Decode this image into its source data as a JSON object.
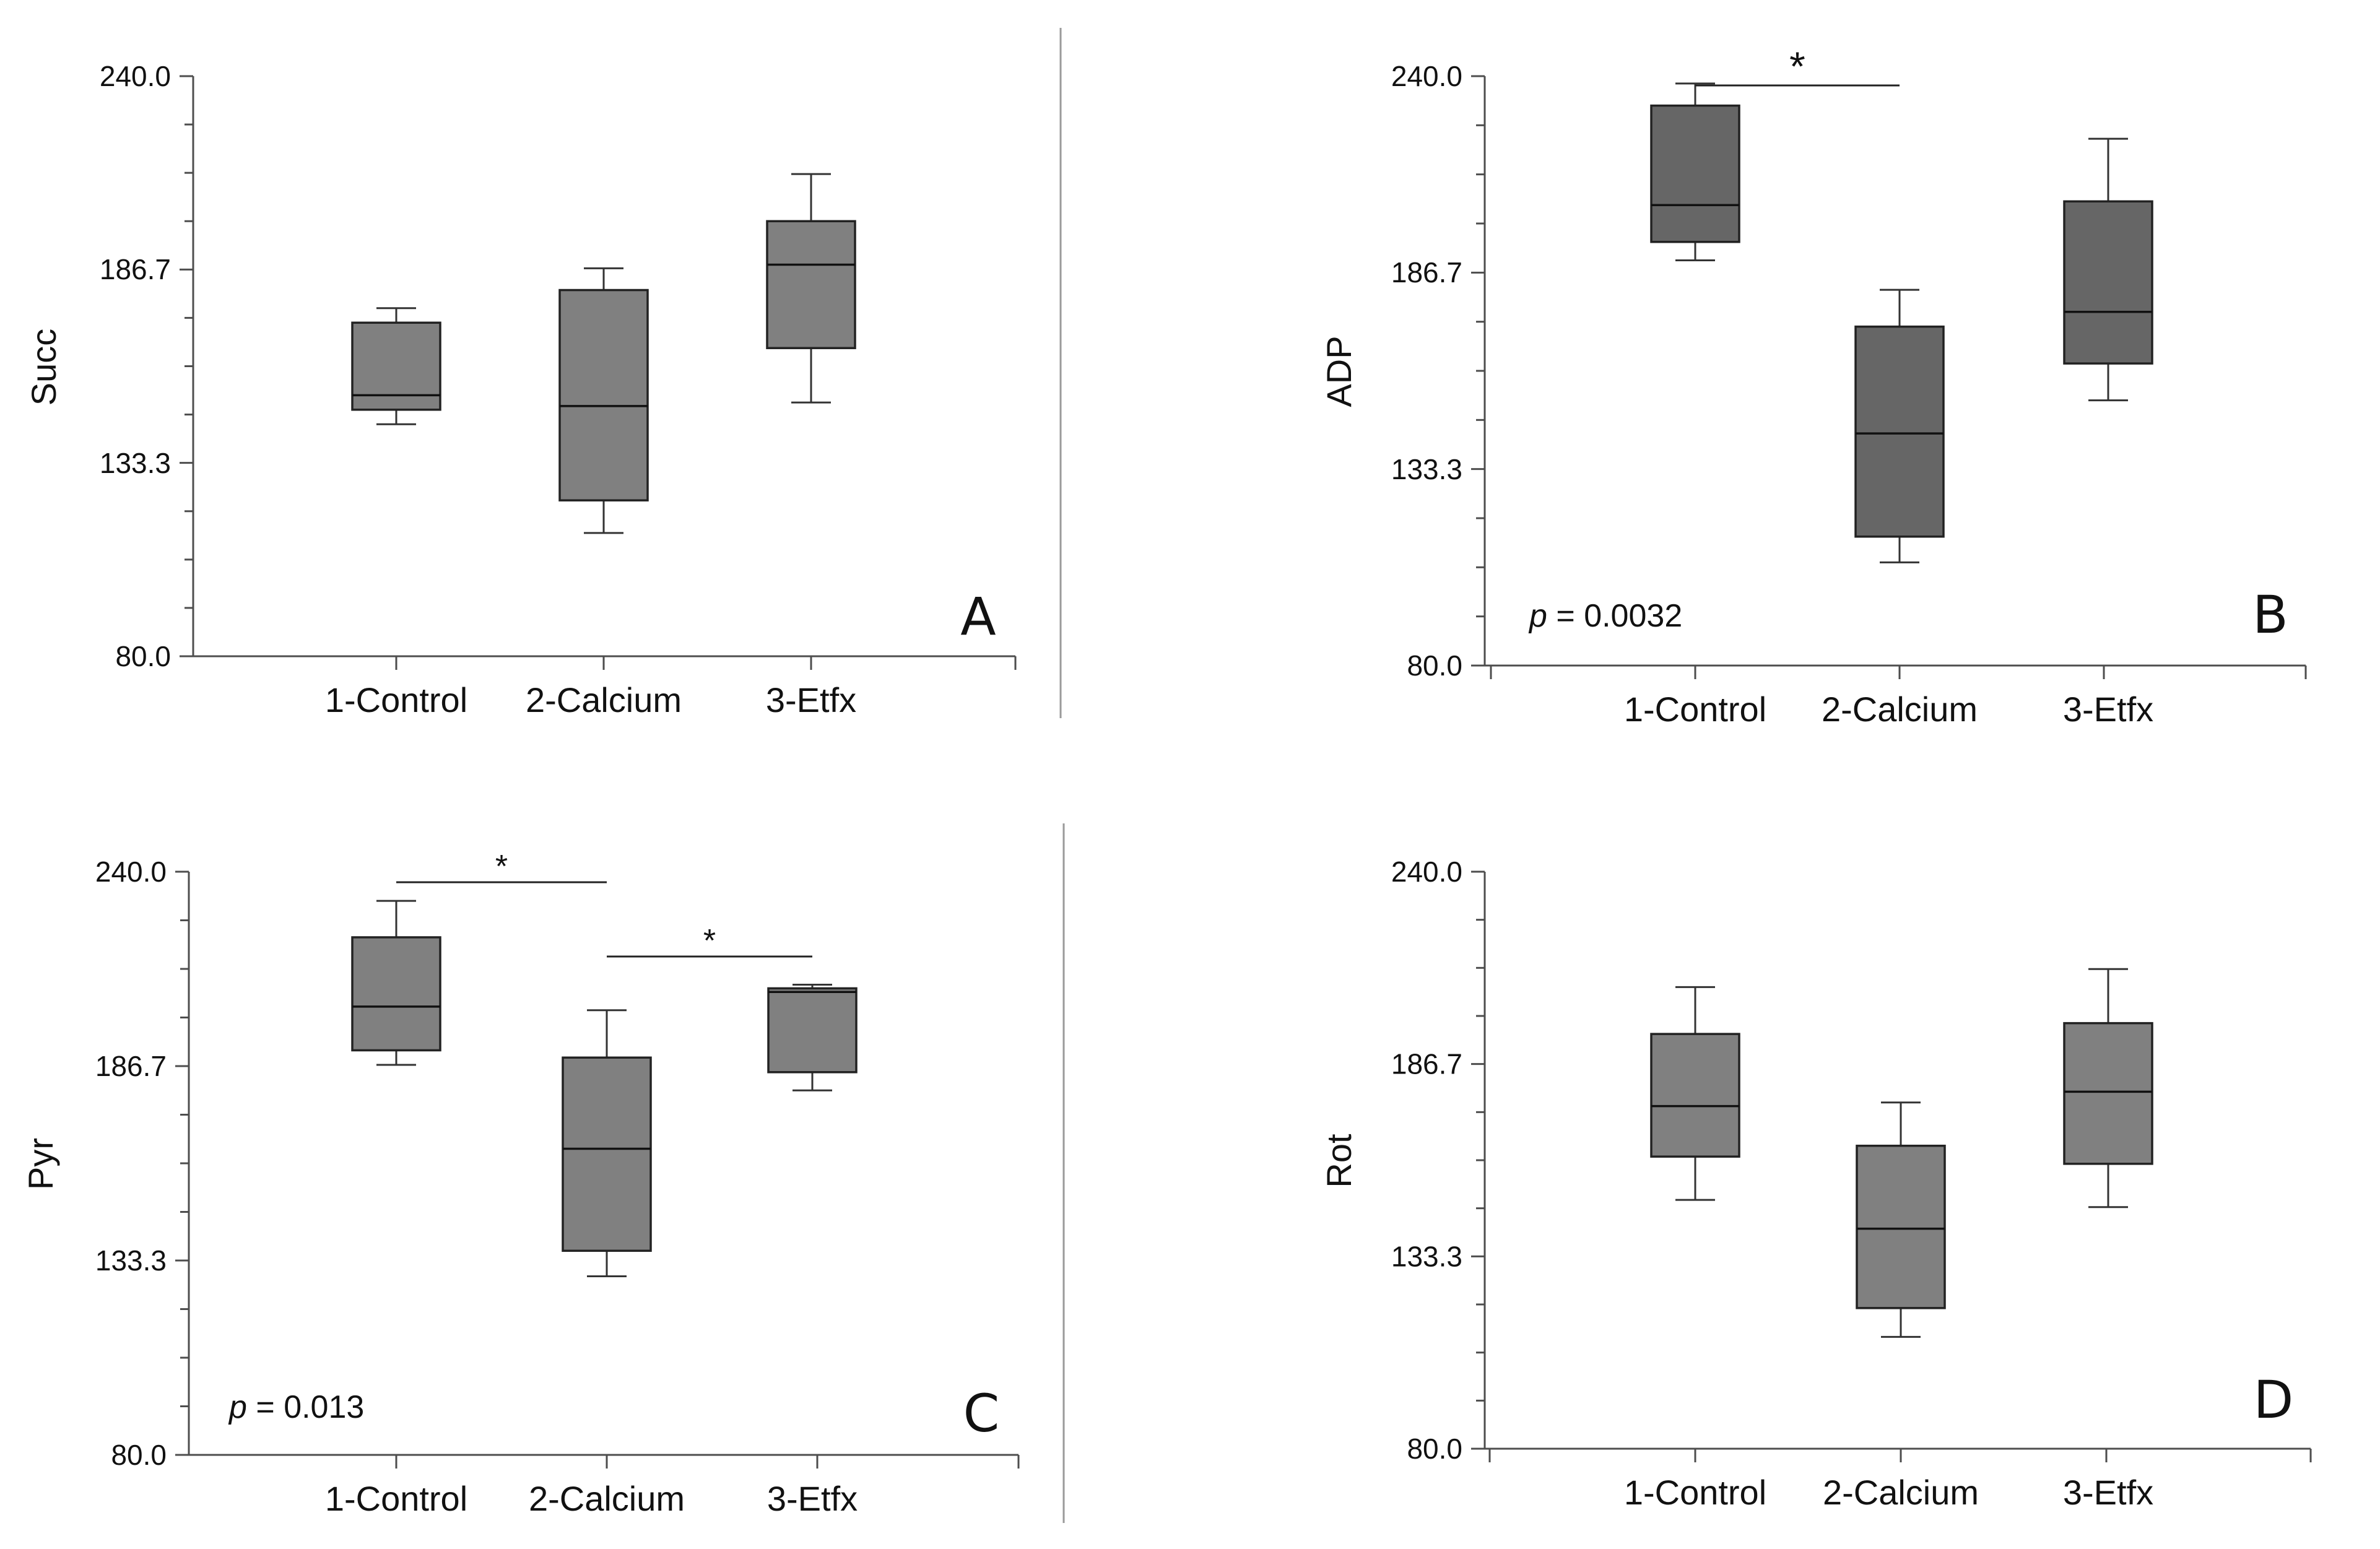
{
  "chart_data": [
    {
      "type": "box",
      "panel": "A",
      "ylabel": "Succ",
      "ylim": [
        80.0,
        240.0
      ],
      "yticks": [
        "240.0",
        "186.7",
        "133.3",
        "80.0"
      ],
      "categories": [
        "1-Control",
        "2-Calcium",
        "3-Etfx"
      ],
      "boxes": [
        {
          "whisker_low": 144,
          "q1": 148,
          "median": 152,
          "q3": 172,
          "whisker_high": 176
        },
        {
          "whisker_low": 114,
          "q1": 123,
          "median": 149,
          "q3": 181,
          "whisker_high": 187
        },
        {
          "whisker_low": 150,
          "q1": 165,
          "median": 188,
          "q3": 200,
          "whisker_high": 213
        }
      ],
      "box_color": "#808080",
      "p_value": "",
      "significance": []
    },
    {
      "type": "box",
      "panel": "B",
      "ylabel": "ADP",
      "ylim": [
        80.0,
        240.0
      ],
      "yticks": [
        "240.0",
        "186.7",
        "133.3",
        "80.0"
      ],
      "categories": [
        "1-Control",
        "2-Calcium",
        "3-Etfx"
      ],
      "boxes": [
        {
          "whisker_low": 190,
          "q1": 195,
          "median": 205,
          "q3": 232,
          "whisker_high": 238
        },
        {
          "whisker_low": 108,
          "q1": 115,
          "median": 143,
          "q3": 172,
          "whisker_high": 182
        },
        {
          "whisker_low": 152,
          "q1": 162,
          "median": 176,
          "q3": 206,
          "whisker_high": 223
        }
      ],
      "box_color": "#666666",
      "p_value": "= 0.0032",
      "significance": [
        {
          "from": "1-Control",
          "to": "2-Calcium",
          "label": "*"
        }
      ]
    },
    {
      "type": "box",
      "panel": "C",
      "ylabel": "Pyr",
      "ylim": [
        80.0,
        240.0
      ],
      "yticks": [
        "240.0",
        "186.7",
        "133.3",
        "80.0"
      ],
      "categories": [
        "1-Control",
        "2-Calcium",
        "3-Etfx"
      ],
      "boxes": [
        {
          "whisker_low": 187,
          "q1": 191,
          "median": 203,
          "q3": 222,
          "whisker_high": 232
        },
        {
          "whisker_low": 129,
          "q1": 136,
          "median": 164,
          "q3": 189,
          "whisker_high": 202
        },
        {
          "whisker_low": 180,
          "q1": 185,
          "median": 207,
          "q3": 208,
          "whisker_high": 209
        }
      ],
      "box_color": "#808080",
      "p_value": "= 0.013",
      "significance": [
        {
          "from": "1-Control",
          "to": "2-Calcium",
          "label": "*"
        },
        {
          "from": "2-Calcium",
          "to": "3-Etfx",
          "label": "*"
        }
      ]
    },
    {
      "type": "box",
      "panel": "D",
      "ylabel": "Rot",
      "ylim": [
        80.0,
        240.0
      ],
      "yticks": [
        "240.0",
        "186.7",
        "133.3",
        "80.0"
      ],
      "categories": [
        "1-Control",
        "2-Calcium",
        "3-Etfx"
      ],
      "boxes": [
        {
          "whisker_low": 149,
          "q1": 161,
          "median": 175,
          "q3": 195,
          "whisker_high": 208
        },
        {
          "whisker_low": 111,
          "q1": 119,
          "median": 141,
          "q3": 164,
          "whisker_high": 176
        },
        {
          "whisker_low": 147,
          "q1": 159,
          "median": 179,
          "q3": 198,
          "whisker_high": 213
        }
      ],
      "box_color": "#808080",
      "p_value": "",
      "significance": []
    }
  ]
}
